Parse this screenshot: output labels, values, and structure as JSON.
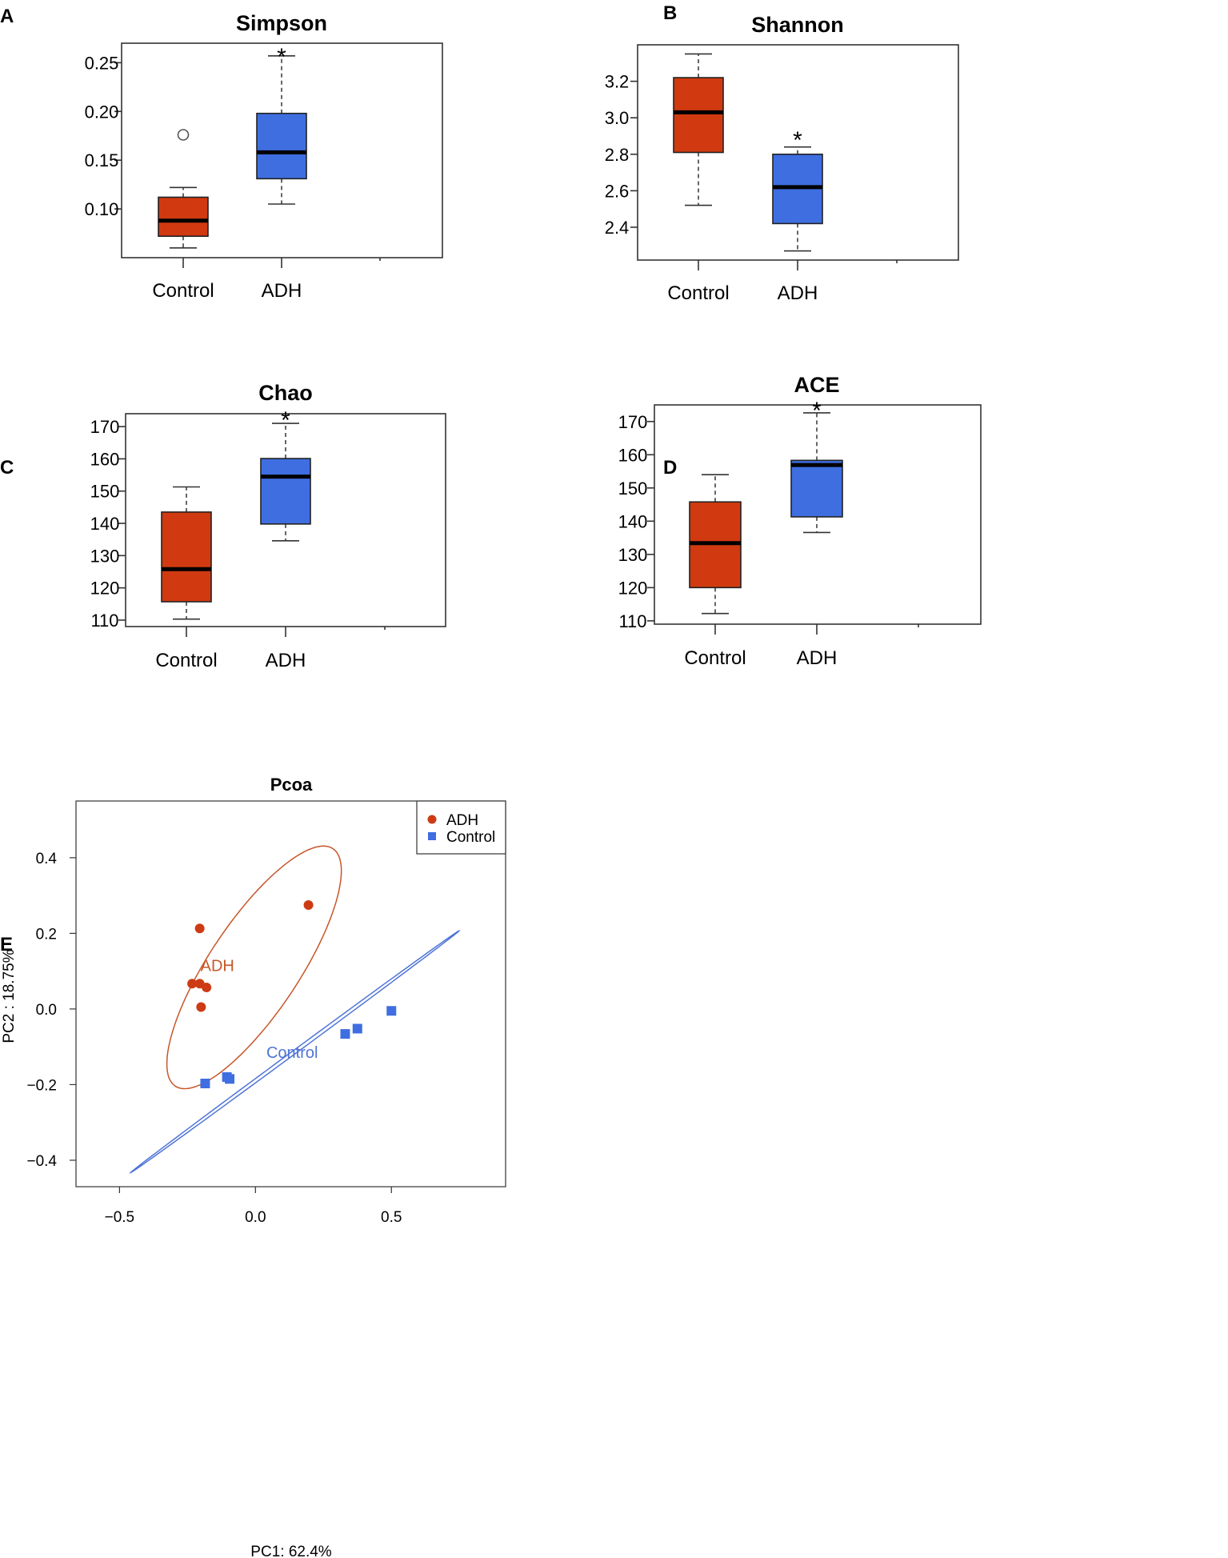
{
  "panels": {
    "a": "A",
    "b": "B",
    "c": "C",
    "d": "D",
    "e": "E"
  },
  "colors": {
    "control_box": "#d13a10",
    "adh_box": "#3f6ee0",
    "adh_ellipse": "#c7562a",
    "control_ellipse": "#4f74d6"
  },
  "chart_data": [
    {
      "id": "simpson",
      "type": "boxplot",
      "title": "Simpson",
      "categories": [
        "Control",
        "ADH"
      ],
      "ylim": [
        0.05,
        0.27
      ],
      "yticks": [
        0.1,
        0.15,
        0.2,
        0.25
      ],
      "ytick_labels": [
        "0.10",
        "0.15",
        "0.20",
        "0.25"
      ],
      "boxes": [
        {
          "name": "Control",
          "min": 0.06,
          "q1": 0.072,
          "median": 0.088,
          "q3": 0.112,
          "max": 0.122,
          "outliers": [
            0.176
          ]
        },
        {
          "name": "ADH",
          "min": 0.105,
          "q1": 0.131,
          "median": 0.158,
          "q3": 0.198,
          "max": 0.257,
          "outliers": []
        }
      ],
      "annotations": [
        {
          "text": "*",
          "category": "ADH",
          "y": 0.26
        }
      ]
    },
    {
      "id": "shannon",
      "type": "boxplot",
      "title": "Shannon",
      "categories": [
        "Control",
        "ADH"
      ],
      "ylim": [
        2.22,
        3.4
      ],
      "yticks": [
        2.4,
        2.6,
        2.8,
        3.0,
        3.2
      ],
      "ytick_labels": [
        "2.4",
        "2.6",
        "2.8",
        "3.0",
        "3.2"
      ],
      "boxes": [
        {
          "name": "Control",
          "min": 2.52,
          "q1": 2.81,
          "median": 3.03,
          "q3": 3.22,
          "max": 3.35,
          "outliers": []
        },
        {
          "name": "ADH",
          "min": 2.27,
          "q1": 2.42,
          "median": 2.62,
          "q3": 2.8,
          "max": 2.84,
          "outliers": []
        }
      ],
      "annotations": [
        {
          "text": "*",
          "category": "ADH",
          "y": 2.9
        }
      ]
    },
    {
      "id": "chao",
      "type": "boxplot",
      "title": "Chao",
      "categories": [
        "Control",
        "ADH"
      ],
      "ylim": [
        108,
        174
      ],
      "yticks": [
        110,
        120,
        130,
        140,
        150,
        160,
        170
      ],
      "ytick_labels": [
        "110",
        "120",
        "130",
        "140",
        "150",
        "160",
        "170"
      ],
      "boxes": [
        {
          "name": "Control",
          "min": 110.3,
          "q1": 115.7,
          "median": 125.8,
          "q3": 143.5,
          "max": 151.3,
          "outliers": []
        },
        {
          "name": "ADH",
          "min": 134.6,
          "q1": 139.8,
          "median": 154.5,
          "q3": 160.1,
          "max": 171.0,
          "outliers": []
        }
      ],
      "annotations": [
        {
          "text": "*",
          "category": "ADH",
          "y": 173.2
        }
      ]
    },
    {
      "id": "ace",
      "type": "boxplot",
      "title": "ACE",
      "categories": [
        "Control",
        "ADH"
      ],
      "ylim": [
        109,
        175
      ],
      "yticks": [
        110,
        120,
        130,
        140,
        150,
        160,
        170
      ],
      "ytick_labels": [
        "110",
        "120",
        "130",
        "140",
        "150",
        "160",
        "170"
      ],
      "boxes": [
        {
          "name": "Control",
          "min": 112.2,
          "q1": 120.0,
          "median": 133.4,
          "q3": 145.8,
          "max": 154.0,
          "outliers": []
        },
        {
          "name": "ADH",
          "min": 136.6,
          "q1": 141.3,
          "median": 156.9,
          "q3": 158.3,
          "max": 172.6,
          "outliers": []
        }
      ],
      "annotations": [
        {
          "text": "*",
          "category": "ADH",
          "y": 174.5
        }
      ]
    },
    {
      "id": "pcoa",
      "type": "scatter",
      "title": "Pcoa",
      "xlabel": "PC1: 62.4%",
      "ylabel": "PC2 : 18.75%",
      "xlim": [
        -0.66,
        0.92
      ],
      "ylim": [
        -0.47,
        0.55
      ],
      "xticks": [
        -0.5,
        0.0,
        0.5
      ],
      "xtick_labels": [
        "−0.5",
        "0.0",
        "0.5"
      ],
      "yticks": [
        -0.4,
        -0.2,
        0.0,
        0.2,
        0.4
      ],
      "ytick_labels": [
        "−0.4",
        "−0.2",
        "0.0",
        "0.2",
        "0.4"
      ],
      "legend": {
        "position": "top-right",
        "entries": [
          "ADH",
          "Control"
        ]
      },
      "series": [
        {
          "name": "ADH",
          "marker": "circle",
          "label": "ADH",
          "label_at": [
            -0.14,
            0.115
          ],
          "points": [
            [
              -0.205,
              0.213
            ],
            [
              0.195,
              0.275
            ],
            [
              -0.233,
              0.067
            ],
            [
              -0.205,
              0.067
            ],
            [
              -0.18,
              0.057
            ],
            [
              -0.2,
              0.005
            ]
          ],
          "ellipse": {
            "cx": -0.005,
            "cy": 0.11,
            "a": 0.43,
            "b": 0.145,
            "angle_deg": 45
          }
        },
        {
          "name": "Control",
          "marker": "square",
          "label": "Control",
          "label_at": [
            0.135,
            -0.115
          ],
          "points": [
            [
              -0.185,
              -0.197
            ],
            [
              -0.105,
              -0.18
            ],
            [
              -0.095,
              -0.185
            ],
            [
              0.33,
              -0.066
            ],
            [
              0.375,
              -0.052
            ],
            [
              0.5,
              -0.005
            ]
          ],
          "ellipse": {
            "cx": 0.145,
            "cy": -0.113,
            "a": 0.683,
            "b": 0.0052,
            "angle_deg": 27.9
          }
        }
      ]
    }
  ]
}
